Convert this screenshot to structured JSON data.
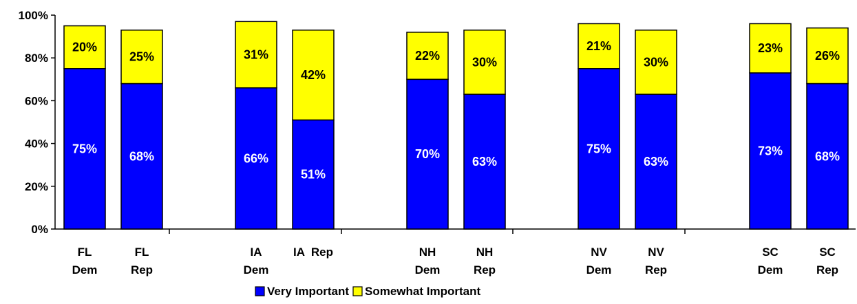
{
  "chart_data": {
    "type": "bar",
    "stacked": true,
    "categories": [
      "FL Dem",
      "FL Rep",
      "IA Dem",
      "IA  Rep",
      "NH Dem",
      "NH Rep",
      "NV Dem",
      "NV Rep",
      "SC Dem",
      "SC Rep"
    ],
    "series": [
      {
        "name": "Very Important",
        "color": "#0000ff",
        "values": [
          75,
          68,
          66,
          51,
          70,
          63,
          75,
          63,
          73,
          68
        ]
      },
      {
        "name": "Somewhat Important",
        "color": "#ffff00",
        "values": [
          20,
          25,
          31,
          42,
          22,
          30,
          21,
          30,
          23,
          26
        ]
      }
    ],
    "data_labels": {
      "Very Important": [
        "75%",
        "68%",
        "66%",
        "51%",
        "70%",
        "63%",
        "75%",
        "63%",
        "73%",
        "68%"
      ],
      "Somewhat Important": [
        "20%",
        "25%",
        "31%",
        "42%",
        "22%",
        "30%",
        "21%",
        "30%",
        "23%",
        "26%"
      ]
    },
    "yticks": [
      "0%",
      "20%",
      "40%",
      "60%",
      "80%",
      "100%"
    ],
    "ylim": [
      0,
      100
    ],
    "legend_position": "bottom",
    "grid": false,
    "title": "",
    "xlabel": "",
    "ylabel": ""
  }
}
